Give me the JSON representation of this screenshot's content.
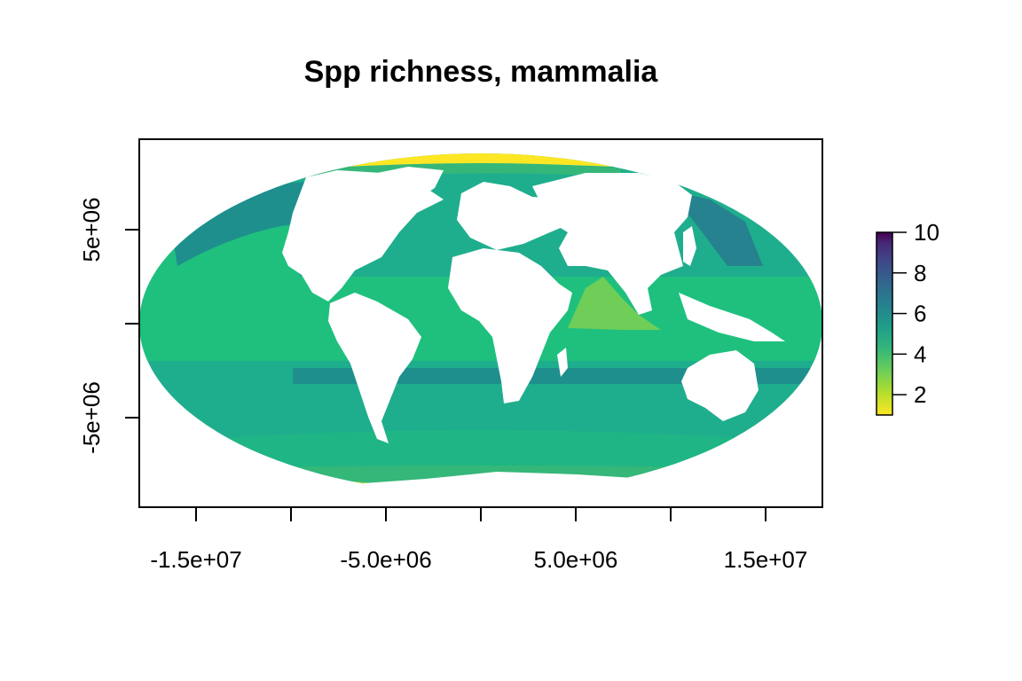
{
  "map": {
    "title": "Spp richness, mammalia",
    "projection": "mollweide",
    "x_axis": {
      "ticks": [
        -15000000,
        -10000000,
        -5000000,
        0,
        5000000,
        10000000,
        15000000
      ],
      "tick_labels": [
        {
          "value": -15000000,
          "label": "-1.5e+07"
        },
        {
          "value": -5000000,
          "label": "-5.0e+06"
        },
        {
          "value": 5000000,
          "label": "5.0e+06"
        },
        {
          "value": 15000000,
          "label": "1.5e+07"
        }
      ]
    },
    "y_axis": {
      "ticks": [
        -5000000,
        0,
        5000000
      ],
      "tick_labels": [
        {
          "value": 5000000,
          "label": "5e+06"
        },
        {
          "value": -5000000,
          "label": "-5e+06"
        }
      ]
    },
    "legend": {
      "position": "right",
      "min": 1,
      "max": 10,
      "ticks": [
        {
          "value": 10,
          "label": "10"
        },
        {
          "value": 8,
          "label": "8"
        },
        {
          "value": 6,
          "label": "6"
        },
        {
          "value": 4,
          "label": "4"
        },
        {
          "value": 2,
          "label": "2"
        }
      ],
      "palette": "viridis-reversed"
    },
    "colors": {
      "land": "#ffffff",
      "frame": "#000000",
      "c1": "#fde725",
      "c2": "#b5de2b",
      "c3": "#6ece58",
      "c4": "#35b779",
      "c5": "#1f9e89",
      "c6": "#26828e",
      "c7": "#31688e",
      "c8": "#3e4989",
      "c9": "#482878",
      "c10": "#440154"
    }
  }
}
